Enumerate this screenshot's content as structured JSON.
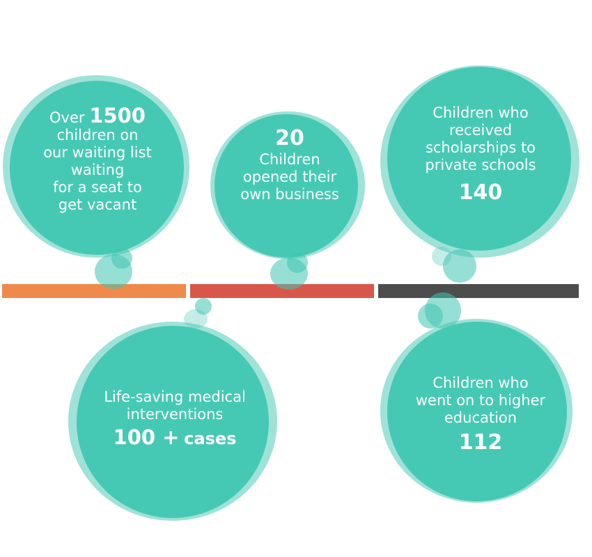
{
  "timeline": {
    "segment_colors": [
      "#ef8a4b",
      "#d9574a",
      "#4d4d4d"
    ]
  },
  "colors": {
    "circle": "#46c9b4",
    "halo": "#8fdcd0",
    "text": "#ffffff"
  },
  "stats": {
    "waiting_list": {
      "prefix": "Over",
      "number": "1500",
      "lines": [
        "children on",
        "our waiting list",
        "waiting",
        "for a seat to",
        "get vacant"
      ]
    },
    "business": {
      "number": "20",
      "lines": [
        "Children",
        "opened their",
        "own business"
      ]
    },
    "scholarships": {
      "lines": [
        "Children who",
        "received",
        "scholarships to",
        "private schools"
      ],
      "number": "140"
    },
    "medical": {
      "lines": [
        "Life-saving medical",
        "interventions"
      ],
      "number": "100 +",
      "suffix": "cases"
    },
    "higher_education": {
      "lines": [
        "Children who",
        "went on to higher",
        "education"
      ],
      "number": "112"
    }
  }
}
